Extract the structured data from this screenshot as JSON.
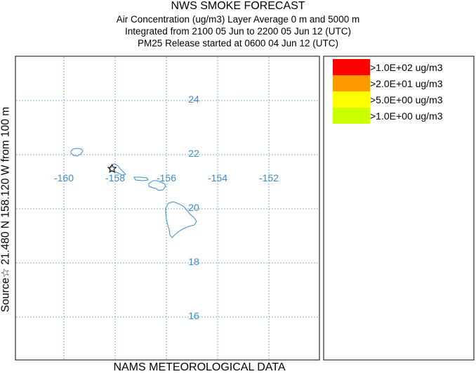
{
  "header": {
    "title": "NWS SMOKE FORECAST",
    "line2": "Air Concentration (ug/m3) Layer Average    0 m and  5000 m",
    "line3": "Integrated from 2100 05 Jun to 2200 05 Jun 12 (UTC)",
    "line4": "PM25 Release started at 0600 04 Jun 12 (UTC)"
  },
  "footer": {
    "text": "NAMS METEOROLOGICAL DATA"
  },
  "side_label": {
    "text": "Source☆ 21.480  N 158.120  W      from   100 m"
  },
  "map": {
    "longitude_labels": [
      "-160",
      "-158",
      "-156",
      "-154",
      "-152"
    ],
    "latitude_labels": [
      "24",
      "22",
      "20",
      "18",
      "16"
    ],
    "longitudes": [
      -160,
      -158,
      -156,
      -154,
      -152
    ],
    "latitudes": [
      24,
      22,
      20,
      18,
      16
    ],
    "gridline_color": "#7fb2e0",
    "label_color": "#3a8cc8",
    "coastline_color": "#3a8cc8",
    "source": {
      "lat": 21.48,
      "lon": -158.12,
      "marker": "star"
    }
  },
  "legend": {
    "items": [
      {
        "label": ">1.0E+02 ug/m3",
        "color": "#ff0000"
      },
      {
        "label": ">2.0E+01 ug/m3",
        "color": "#ff9900"
      },
      {
        "label": ">5.0E+00 ug/m3",
        "color": "#ffff00"
      },
      {
        "label": ">1.0E+00 ug/m3",
        "color": "#ccff00"
      }
    ]
  }
}
